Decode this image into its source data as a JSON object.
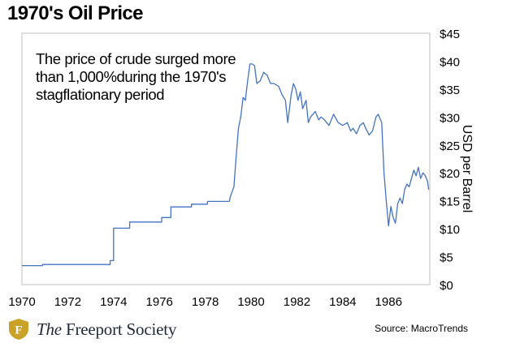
{
  "header": {
    "title": "1970's Oil Price"
  },
  "annotation": {
    "text": "The price of crude surged more than 1,000%during the 1970's stagflationary period"
  },
  "footer": {
    "source": "Source: MacroTrends",
    "brand_prefix": "The",
    "brand_name": "Freeport Society",
    "logo_letter": "F"
  },
  "colors": {
    "line": "#4472c4",
    "axis": "#bfbfbf",
    "text": "#000000",
    "brand": "#1e2a3a",
    "logo": "#c9a227"
  },
  "chart_data": {
    "type": "line",
    "title": "1970's Oil Price",
    "xlabel": "",
    "ylabel": "USD per Barrel",
    "xlim": [
      1970,
      1987.8
    ],
    "ylim": [
      0,
      45
    ],
    "x_ticks": [
      "1970",
      "1972",
      "1974",
      "1976",
      "1978",
      "1980",
      "1982",
      "1984",
      "1986"
    ],
    "y_ticks": [
      "$0",
      "$5",
      "$10",
      "$15",
      "$20",
      "$25",
      "$30",
      "$35",
      "$40",
      "$45"
    ],
    "y_axis_position": "right",
    "grid": false,
    "series": [
      {
        "x": [
          1970,
          1970.9,
          1970.9,
          1973.85,
          1973.85,
          1974.0,
          1974.0,
          1974.7,
          1974.7,
          1976.1,
          1976.1,
          1976.5,
          1976.5,
          1977.4,
          1977.4,
          1978.1,
          1978.1,
          1979.05,
          1979.1,
          1979.25,
          1979.35,
          1979.45,
          1979.55,
          1979.65,
          1979.75,
          1979.85,
          1979.95,
          1980.05,
          1980.15,
          1980.25,
          1980.4,
          1980.55,
          1980.7,
          1980.85,
          1981.0,
          1981.2,
          1981.35,
          1981.5,
          1981.6,
          1981.75,
          1981.85,
          1981.95,
          1982.05,
          1982.15,
          1982.25,
          1982.4,
          1982.5,
          1982.6,
          1982.8,
          1982.95,
          1983.05,
          1983.2,
          1983.4,
          1983.6,
          1983.8,
          1984.0,
          1984.2,
          1984.35,
          1984.45,
          1984.6,
          1984.75,
          1984.9,
          1985.0,
          1985.15,
          1985.3,
          1985.45,
          1985.55,
          1985.7,
          1985.8,
          1985.9,
          1986.0,
          1986.1,
          1986.2,
          1986.3,
          1986.4,
          1986.5,
          1986.6,
          1986.7,
          1986.8,
          1986.9,
          1987.0,
          1987.1,
          1987.2,
          1987.3,
          1987.4,
          1987.5,
          1987.6,
          1987.7,
          1987.75
        ],
        "values": [
          3.4,
          3.4,
          3.6,
          3.6,
          4.3,
          4.3,
          10.1,
          10.1,
          11.2,
          11.2,
          12.0,
          12.0,
          13.9,
          13.9,
          14.4,
          14.4,
          14.9,
          14.9,
          15.8,
          17.5,
          23.0,
          28.0,
          30.0,
          33.5,
          33.0,
          36.5,
          39.5,
          39.5,
          39.2,
          36.0,
          36.5,
          38.0,
          37.5,
          36.0,
          36.0,
          35.5,
          34.0,
          33.0,
          29.0,
          34.0,
          36.0,
          35.0,
          33.0,
          34.5,
          31.5,
          33.0,
          29.0,
          30.0,
          31.0,
          29.5,
          30.0,
          29.5,
          28.5,
          30.5,
          29.0,
          28.5,
          29.0,
          27.5,
          28.0,
          27.0,
          28.5,
          29.0,
          28.0,
          26.8,
          27.5,
          30.0,
          30.5,
          29.0,
          20.0,
          15.0,
          10.5,
          14.0,
          12.0,
          11.0,
          14.5,
          15.5,
          14.5,
          17.0,
          18.0,
          17.5,
          19.0,
          20.5,
          19.5,
          21.0,
          19.0,
          20.0,
          19.5,
          18.5,
          17.0
        ]
      }
    ]
  }
}
